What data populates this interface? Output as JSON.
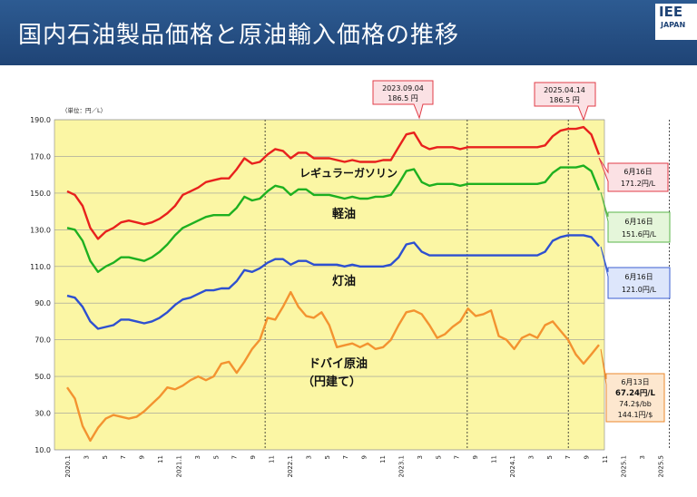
{
  "header": {
    "title": "国内石油製品価格と原油輸入価格の推移"
  },
  "logo": {
    "text": "IEE",
    "sub": "JAPAN"
  },
  "colors": {
    "header_bg": "#1f4476",
    "plot_bg": "#fbf6a4",
    "regular": "#e8211d",
    "diesel": "#1eb020",
    "kerosene": "#2e50d0",
    "crude": "#f39330"
  },
  "annotations": [
    {
      "date": "2023.09.04",
      "value": "186.5 円"
    },
    {
      "date": "2025.04.14",
      "value": "186.5 円"
    }
  ],
  "end_labels": {
    "regular": {
      "line1": "6月16日",
      "line2": "171.2円/L"
    },
    "diesel": {
      "line1": "6月16日",
      "line2": "151.6円/L"
    },
    "kerosene": {
      "line1": "6月16日",
      "line2": "121.0円/L"
    },
    "crude": {
      "line1": "6月13日",
      "line2": "67.24円/L",
      "line3": "74.2$/bb",
      "line4": "144.1円/$"
    }
  },
  "chart_data": {
    "type": "line",
    "unit_label": "（単位：円／L）",
    "ylim": [
      10,
      190
    ],
    "yticks": [
      "10.0",
      "30.0",
      "50.0",
      "70.0",
      "90.0",
      "110.0",
      "130.0",
      "150.0",
      "170.0",
      "190.0"
    ],
    "xticks": [
      "2020.1",
      "3",
      "5",
      "7",
      "9",
      "11",
      "2021.1",
      "3",
      "5",
      "7",
      "9",
      "11",
      "2022.1",
      "3",
      "5",
      "7",
      "9",
      "11",
      "2023.1",
      "3",
      "5",
      "7",
      "9",
      "11",
      "2024.1",
      "3",
      "5",
      "7",
      "9",
      "11",
      "2025.1",
      "3",
      "2025.5"
    ],
    "series": [
      {
        "name": "レギュラーガソリン",
        "values": [
          151,
          149,
          143,
          131,
          125,
          129,
          131,
          134,
          135,
          134,
          133,
          134,
          136,
          139,
          143,
          149,
          151,
          153,
          156,
          157,
          158,
          158,
          163,
          169,
          166,
          167,
          171,
          174,
          173,
          169,
          172,
          172,
          169,
          169,
          169,
          168,
          167,
          168,
          167,
          167,
          167,
          168,
          168,
          175,
          182,
          183,
          176,
          174,
          175,
          175,
          175,
          174,
          175,
          175,
          175,
          175,
          175,
          175,
          175,
          175,
          175,
          175,
          176,
          181,
          184,
          185,
          185,
          186,
          182,
          171
        ]
      },
      {
        "name": "軽油",
        "values": [
          131,
          130,
          124,
          113,
          107,
          110,
          112,
          115,
          115,
          114,
          113,
          115,
          118,
          122,
          127,
          131,
          133,
          135,
          137,
          138,
          138,
          138,
          142,
          148,
          146,
          147,
          151,
          154,
          153,
          149,
          152,
          152,
          149,
          149,
          149,
          148,
          147,
          148,
          147,
          147,
          148,
          148,
          149,
          155,
          162,
          163,
          156,
          154,
          155,
          155,
          155,
          154,
          155,
          155,
          155,
          155,
          155,
          155,
          155,
          155,
          155,
          155,
          156,
          161,
          164,
          164,
          164,
          165,
          162,
          151.6
        ]
      },
      {
        "name": "灯油",
        "values": [
          94,
          93,
          88,
          80,
          76,
          77,
          78,
          81,
          81,
          80,
          79,
          80,
          82,
          85,
          89,
          92,
          93,
          95,
          97,
          97,
          98,
          98,
          102,
          108,
          107,
          109,
          112,
          114,
          114,
          111,
          113,
          113,
          111,
          111,
          111,
          111,
          110,
          111,
          110,
          110,
          110,
          110,
          111,
          115,
          122,
          123,
          118,
          116,
          116,
          116,
          116,
          116,
          116,
          116,
          116,
          116,
          116,
          116,
          116,
          116,
          116,
          116,
          118,
          124,
          126,
          127,
          127,
          127,
          126,
          121
        ]
      },
      {
        "name": "ドバイ原油（円建て）",
        "values": [
          44,
          38,
          23,
          15,
          22,
          27,
          29,
          28,
          27,
          28,
          31,
          35,
          39,
          44,
          43,
          45,
          48,
          50,
          48,
          50,
          57,
          58,
          52,
          58,
          65,
          70,
          82,
          81,
          88,
          96,
          88,
          83,
          82,
          85,
          78,
          66,
          67,
          68,
          66,
          68,
          65,
          66,
          70,
          78,
          85,
          86,
          84,
          78,
          71,
          73,
          77,
          80,
          87,
          83,
          84,
          86,
          72,
          70,
          65,
          71,
          73,
          71,
          78,
          80,
          75,
          70,
          62,
          57,
          62,
          67.24
        ]
      }
    ],
    "series_labels": [
      "レギュラーガソリン",
      "軽油",
      "灯油",
      "ドバイ原油",
      "（円建て）"
    ],
    "grid": true,
    "legend": "inline"
  }
}
